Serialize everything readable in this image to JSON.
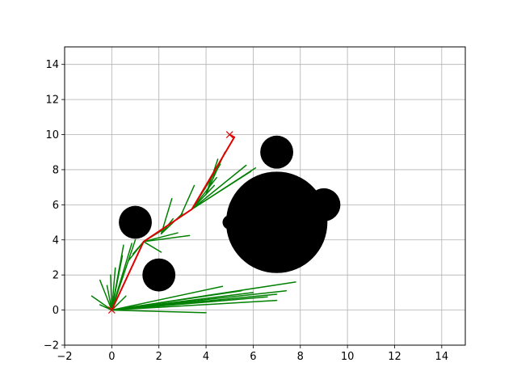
{
  "chart_data": {
    "type": "scatter",
    "title": "",
    "xlabel": "",
    "ylabel": "",
    "xlim": [
      -2,
      15
    ],
    "ylim": [
      -2,
      15
    ],
    "xticks": [
      -2,
      0,
      2,
      4,
      6,
      8,
      10,
      12,
      14
    ],
    "yticks": [
      -2,
      0,
      2,
      4,
      6,
      8,
      10,
      12,
      14
    ],
    "grid": true,
    "colors": {
      "tree": "#008000",
      "path": "#e00000",
      "obstacle": "#000000",
      "marker": "#e00000"
    },
    "obstacles": [
      {
        "cx": 1.0,
        "cy": 5.0,
        "r": 0.7
      },
      {
        "cx": 2.0,
        "cy": 2.0,
        "r": 0.7
      },
      {
        "cx": 7.0,
        "cy": 9.0,
        "r": 0.7
      },
      {
        "cx": 9.0,
        "cy": 6.0,
        "r": 0.7
      },
      {
        "cx": 5.0,
        "cy": 5.0,
        "r": 0.3
      },
      {
        "cx": 7.0,
        "cy": 5.0,
        "r": 2.15
      }
    ],
    "start": [
      0,
      0
    ],
    "goal": [
      5,
      10
    ],
    "path": [
      [
        0,
        0
      ],
      [
        1.35,
        3.9
      ],
      [
        3.4,
        5.75
      ],
      [
        5.2,
        9.85
      ],
      [
        5,
        10
      ]
    ],
    "tree_edges": [
      [
        [
          0,
          0
        ],
        [
          4.0,
          -0.15
        ]
      ],
      [
        [
          0,
          0
        ],
        [
          7.8,
          1.6
        ]
      ],
      [
        [
          0,
          0
        ],
        [
          7.4,
          1.1
        ]
      ],
      [
        [
          0,
          0
        ],
        [
          7.0,
          0.9
        ]
      ],
      [
        [
          0,
          0
        ],
        [
          6.6,
          0.75
        ]
      ],
      [
        [
          0,
          0
        ],
        [
          6.0,
          1.0
        ]
      ],
      [
        [
          0,
          0
        ],
        [
          5.5,
          1.1
        ]
      ],
      [
        [
          0,
          0
        ],
        [
          4.7,
          1.35
        ]
      ],
      [
        [
          0,
          0
        ],
        [
          3.8,
          0.45
        ]
      ],
      [
        [
          0,
          0
        ],
        [
          7.0,
          0.55
        ]
      ],
      [
        [
          0,
          0
        ],
        [
          -0.85,
          0.8
        ]
      ],
      [
        [
          0,
          0
        ],
        [
          -0.5,
          0.3
        ]
      ],
      [
        [
          0,
          0
        ],
        [
          -0.5,
          1.7
        ]
      ],
      [
        [
          0,
          0
        ],
        [
          -0.2,
          1.4
        ]
      ],
      [
        [
          0,
          0
        ],
        [
          -0.05,
          2.0
        ]
      ],
      [
        [
          0,
          0
        ],
        [
          0.15,
          2.4
        ]
      ],
      [
        [
          0,
          0
        ],
        [
          0.35,
          2.6
        ]
      ],
      [
        [
          0,
          0
        ],
        [
          0.45,
          3.1
        ]
      ],
      [
        [
          0,
          0
        ],
        [
          0.6,
          0.8
        ]
      ],
      [
        [
          0,
          0
        ],
        [
          0.5,
          3.7
        ]
      ],
      [
        [
          0,
          0
        ],
        [
          0.85,
          3.8
        ]
      ],
      [
        [
          0,
          0
        ],
        [
          1.0,
          4.0
        ]
      ],
      [
        [
          1.35,
          3.9
        ],
        [
          3.3,
          4.25
        ]
      ],
      [
        [
          1.35,
          3.9
        ],
        [
          2.8,
          4.4
        ]
      ],
      [
        [
          1.35,
          3.9
        ],
        [
          2.2,
          4.6
        ]
      ],
      [
        [
          1.35,
          3.9
        ],
        [
          0.7,
          2.8
        ]
      ],
      [
        [
          1.35,
          3.9
        ],
        [
          0.9,
          3.2
        ]
      ],
      [
        [
          1.35,
          3.9
        ],
        [
          2.1,
          3.3
        ]
      ],
      [
        [
          2.1,
          4.35
        ],
        [
          2.55,
          6.35
        ]
      ],
      [
        [
          2.1,
          4.35
        ],
        [
          3.0,
          5.5
        ]
      ],
      [
        [
          2.1,
          4.35
        ],
        [
          2.6,
          5.2
        ]
      ],
      [
        [
          2.9,
          5.3
        ],
        [
          3.5,
          7.1
        ]
      ],
      [
        [
          3.4,
          5.75
        ],
        [
          6.1,
          8.1
        ]
      ],
      [
        [
          3.4,
          5.75
        ],
        [
          5.7,
          8.25
        ]
      ],
      [
        [
          3.4,
          5.75
        ],
        [
          5.9,
          7.9
        ]
      ],
      [
        [
          3.4,
          5.75
        ],
        [
          4.45,
          7.55
        ]
      ],
      [
        [
          3.4,
          5.75
        ],
        [
          4.6,
          8.3
        ]
      ],
      [
        [
          3.4,
          5.75
        ],
        [
          4.35,
          7.1
        ]
      ],
      [
        [
          4.0,
          6.6
        ],
        [
          4.8,
          9.0
        ]
      ],
      [
        [
          4.0,
          6.6
        ],
        [
          4.5,
          8.6
        ]
      ]
    ]
  }
}
